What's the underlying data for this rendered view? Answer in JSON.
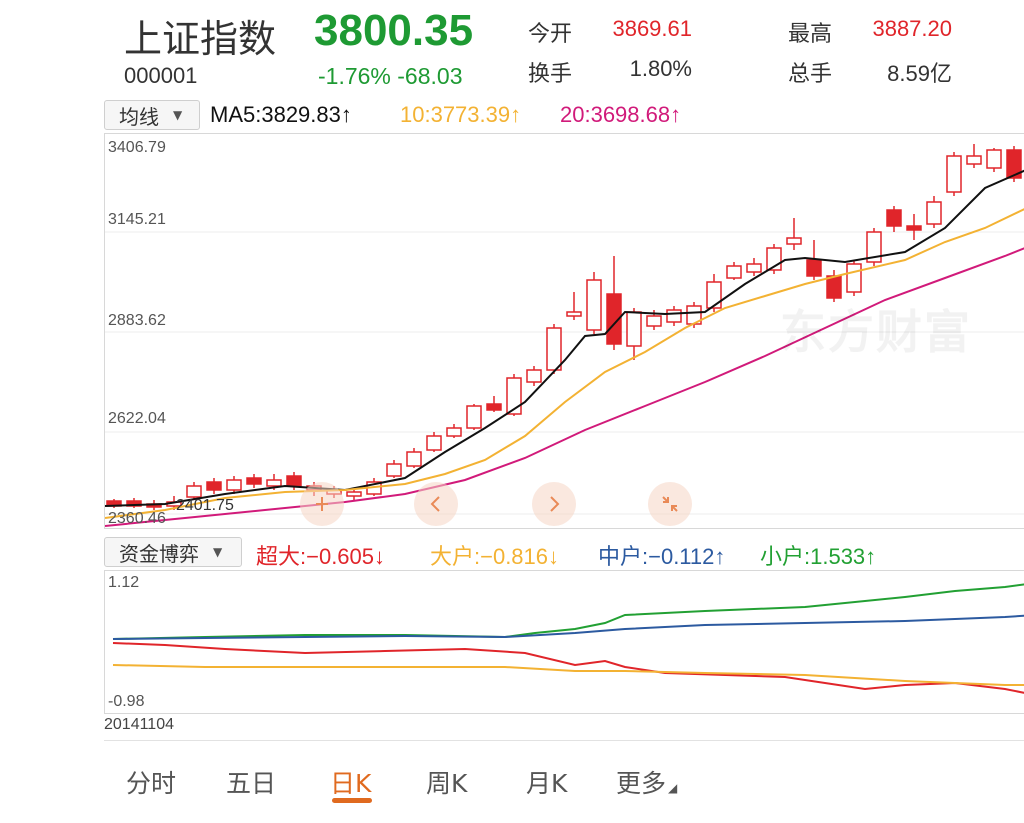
{
  "header": {
    "name": "上证指数",
    "code": "000001",
    "price": "3800.35",
    "change": "-1.76% -68.03",
    "open_label": "今开",
    "open_value": "3869.61",
    "turnover_label": "换手",
    "turnover_value": "1.80%",
    "high_label": "最高",
    "high_value": "3887.20",
    "volume_label": "总手",
    "volume_value": "8.59亿"
  },
  "ma_bar": {
    "selector": "均线",
    "ma5": "MA5:3829.83↑",
    "ma10": "10:3773.39↑",
    "ma20": "20:3698.68↑"
  },
  "price_chart": {
    "y_labels": [
      "3406.79",
      "3145.21",
      "2883.62",
      "2622.04",
      "2360.46"
    ],
    "low_marker": "2401.75",
    "watermark": "东方财富",
    "colors": {
      "up": "#e0252a",
      "ma5": "#111111",
      "ma10": "#f3b233",
      "ma20": "#d11a7a"
    }
  },
  "flow_bar": {
    "selector": "资金博弈",
    "super_large": "超大:−0.605↓",
    "large": "大户:−0.816↓",
    "medium": "中户:−0.112↑",
    "small": "小户:1.533↑"
  },
  "flow_chart": {
    "y_top": "1.12",
    "y_bottom": "-0.98",
    "date": "20141104",
    "colors": {
      "super": "#e0252a",
      "large": "#f3b233",
      "medium": "#2c5aa0",
      "small": "#22a033"
    }
  },
  "icons": [
    "left-arrow-icon",
    "right-arrow-icon",
    "shrink-icon"
  ],
  "tabs": [
    "分时",
    "五日",
    "日K",
    "周K",
    "月K",
    "更多"
  ],
  "active_tab": "日K"
}
